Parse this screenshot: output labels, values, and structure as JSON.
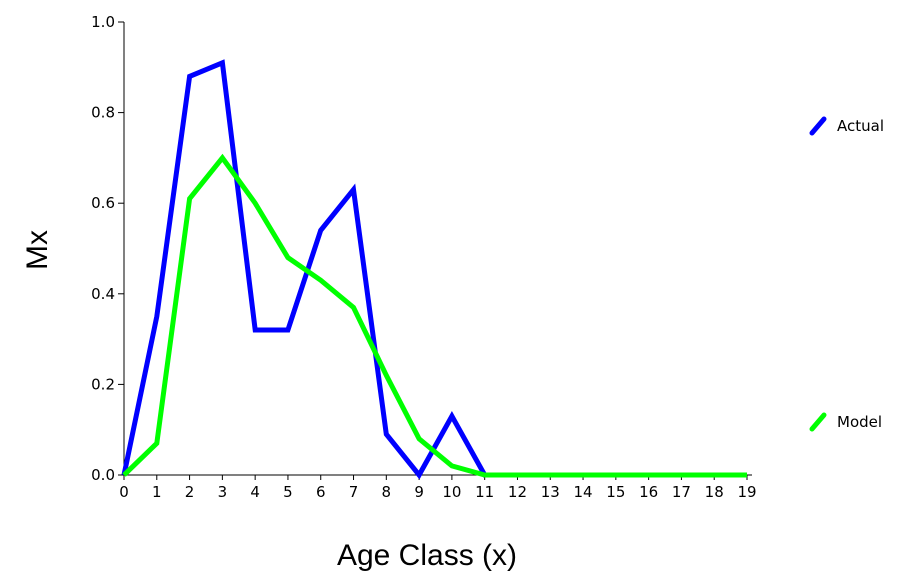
{
  "chart_data": {
    "type": "line",
    "xlabel": "Age Class (x)",
    "ylabel": "Mx",
    "x": [
      0,
      1,
      2,
      3,
      4,
      5,
      6,
      7,
      8,
      9,
      10,
      11,
      12,
      13,
      14,
      15,
      16,
      17,
      18,
      19
    ],
    "x_tick_labels": [
      "0",
      "1",
      "2",
      "3",
      "4",
      "5",
      "6",
      "7",
      "8",
      "9",
      "10",
      "11",
      "12",
      "13",
      "14",
      "15",
      "16",
      "17",
      "18",
      "19"
    ],
    "y_tick_labels": [
      "0.0",
      "0.2",
      "0.4",
      "0.6",
      "0.8",
      "1.0"
    ],
    "xlim": [
      0,
      19
    ],
    "ylim": [
      0,
      1.0
    ],
    "grid": false,
    "legend_position": "right",
    "series": [
      {
        "name": "Actual",
        "color": "#0000ff",
        "values": [
          0,
          0.35,
          0.88,
          0.91,
          0.32,
          0.32,
          0.54,
          0.63,
          0.09,
          0,
          0.13,
          0,
          0,
          0,
          0,
          0,
          0,
          0,
          0,
          0
        ]
      },
      {
        "name": "Model",
        "color": "#00ff00",
        "values": [
          0,
          0.07,
          0.61,
          0.7,
          0.6,
          0.48,
          0.43,
          0.37,
          0.22,
          0.08,
          0.02,
          0,
          0,
          0,
          0,
          0,
          0,
          0,
          0,
          0
        ]
      }
    ]
  }
}
